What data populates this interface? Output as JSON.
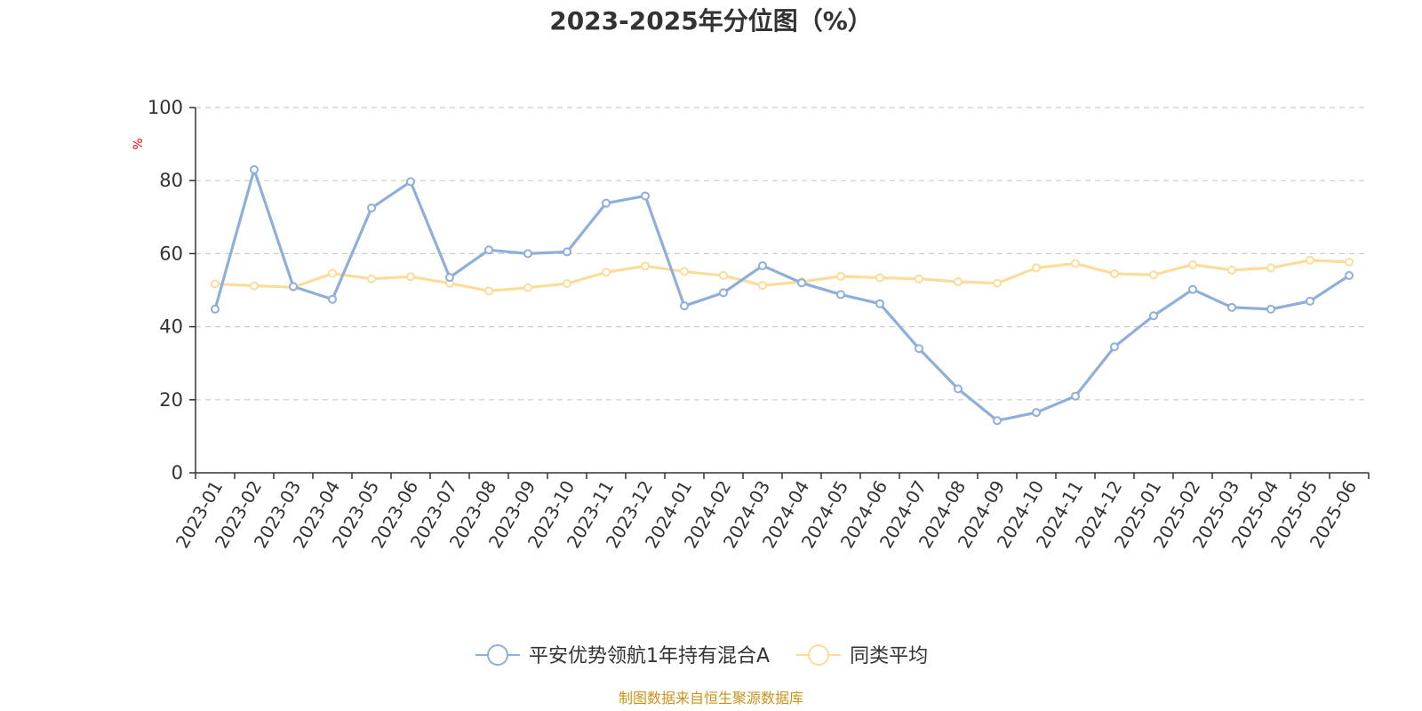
{
  "chart_data": {
    "type": "line",
    "title": "2023-2025年分位图（%）",
    "ylabel": "%",
    "xlabel": "",
    "ylim": [
      0,
      100
    ],
    "yticks": [
      0,
      20,
      40,
      60,
      80,
      100
    ],
    "grid": true,
    "legend_position": "bottom-center",
    "categories": [
      "2023-01",
      "2023-02",
      "2023-03",
      "2023-04",
      "2023-05",
      "2023-06",
      "2023-07",
      "2023-08",
      "2023-09",
      "2023-10",
      "2023-11",
      "2023-12",
      "2024-01",
      "2024-02",
      "2024-03",
      "2024-04",
      "2024-05",
      "2024-06",
      "2024-07",
      "2024-08",
      "2024-09",
      "2024-10",
      "2024-11",
      "2024-12",
      "2025-01",
      "2025-02",
      "2025-03",
      "2025-04",
      "2025-05",
      "2025-06"
    ],
    "series": [
      {
        "name": "平安优势领航1年持有混合A",
        "color": "#8eaedb",
        "values": [
          44.8,
          83.0,
          51.0,
          47.5,
          72.5,
          79.7,
          53.5,
          61.0,
          60.0,
          60.5,
          73.8,
          75.8,
          45.7,
          49.3,
          56.7,
          52.0,
          48.8,
          46.3,
          34.0,
          23.0,
          14.3,
          16.5,
          21.0,
          34.5,
          43.0,
          50.2,
          45.3,
          44.8,
          47.0,
          54.0
        ]
      },
      {
        "name": "同类平均",
        "color": "#fcdc9a",
        "values": [
          51.7,
          51.2,
          50.8,
          54.6,
          53.1,
          53.7,
          51.9,
          49.8,
          50.7,
          51.8,
          54.9,
          56.6,
          55.1,
          54.0,
          51.3,
          52.3,
          53.8,
          53.4,
          53.1,
          52.3,
          51.9,
          56.1,
          57.3,
          54.5,
          54.2,
          57.0,
          55.5,
          56.1,
          58.2,
          57.7
        ]
      }
    ]
  },
  "colors": {
    "unit_label": "#ff0000",
    "source_text": "#c8941a",
    "grid": "#cccccc",
    "axis": "#333333"
  },
  "source": "制图数据来自恒生聚源数据库"
}
